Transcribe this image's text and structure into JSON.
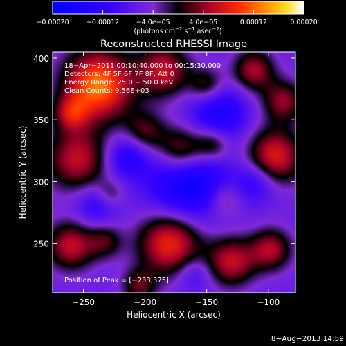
{
  "chart_data": {
    "type": "heatmap",
    "title": "Reconstructed RHESSI Image",
    "xlabel": "Heliocentric X (arcsec)",
    "ylabel": "Heliocentric Y (arcsec)",
    "xlim": [
      -275,
      -78
    ],
    "ylim": [
      210,
      405
    ],
    "x_ticks": [
      -250,
      -200,
      -150,
      -100
    ],
    "x_tick_labels": [
      "−250",
      "−200",
      "−150",
      "−100"
    ],
    "y_ticks": [
      250,
      300,
      350,
      400
    ],
    "y_tick_labels": [
      "250",
      "300",
      "350",
      "400"
    ],
    "colorbar": {
      "range": [
        -0.0002,
        0.0002
      ],
      "tick_values": [
        -0.0002,
        -0.00012,
        -4e-05,
        4e-05,
        0.00012,
        0.0002
      ],
      "tick_labels": [
        "−0.00020",
        "−0.00012",
        "−4.0e−05",
        "4.0e−05",
        "0.00012",
        "0.00020"
      ],
      "units_label": "(photons cm",
      "units_exp1": "−2",
      "units_mid": " s",
      "units_exp2": "−1",
      "units_end": " asec",
      "units_exp3": "−2",
      "units_close": ")"
    },
    "annotations": {
      "time_range": "18−Apr−2011 00:10:40.000 to 00:15:30.000",
      "detectors": "Detectors: 4F 5F 6F 7F 8F, Att 0",
      "energy_range": "Energy Range: 25.0 − 50.0 keV",
      "clean_counts": "Clean Counts: 9.56E+03",
      "peak_position": "Position of Peak = [−233,375]"
    },
    "peak": [
      -233,
      375
    ],
    "blobs_approx": [
      {
        "x": -238,
        "y": 378,
        "s": 20,
        "v": 0.00019
      },
      {
        "x": -260,
        "y": 355,
        "s": 10,
        "v": 9e-05
      },
      {
        "x": -185,
        "y": 390,
        "s": 15,
        "v": 0.00012
      },
      {
        "x": -150,
        "y": 378,
        "s": 10,
        "v": 8e-05
      },
      {
        "x": -112,
        "y": 390,
        "s": 12,
        "v": 0.00011
      },
      {
        "x": -88,
        "y": 365,
        "s": 12,
        "v": 0.0001
      },
      {
        "x": -255,
        "y": 318,
        "s": 18,
        "v": 0.00012
      },
      {
        "x": -200,
        "y": 340,
        "s": 12,
        "v": 8e-05
      },
      {
        "x": -170,
        "y": 325,
        "s": 14,
        "v": 0.00013
      },
      {
        "x": -145,
        "y": 330,
        "s": 10,
        "v": 9e-05
      },
      {
        "x": -95,
        "y": 320,
        "s": 16,
        "v": 0.00014
      },
      {
        "x": -228,
        "y": 290,
        "s": 8,
        "v": 5e-05
      },
      {
        "x": -135,
        "y": 285,
        "s": 10,
        "v": 6e-05
      },
      {
        "x": -260,
        "y": 248,
        "s": 14,
        "v": 0.00012
      },
      {
        "x": -232,
        "y": 252,
        "s": 10,
        "v": 7e-05
      },
      {
        "x": -180,
        "y": 250,
        "s": 18,
        "v": 0.00015
      },
      {
        "x": -130,
        "y": 235,
        "s": 14,
        "v": 0.00012
      },
      {
        "x": -98,
        "y": 245,
        "s": 12,
        "v": 0.00011
      },
      {
        "x": -205,
        "y": 215,
        "s": 10,
        "v": 8e-05
      },
      {
        "x": -165,
        "y": 300,
        "s": 22,
        "v": -0.00013
      },
      {
        "x": -140,
        "y": 355,
        "s": 16,
        "v": -9e-05
      },
      {
        "x": -215,
        "y": 320,
        "s": 12,
        "v": -8e-05
      },
      {
        "x": -110,
        "y": 300,
        "s": 12,
        "v": -7e-05
      },
      {
        "x": -240,
        "y": 280,
        "s": 12,
        "v": -6e-05
      },
      {
        "x": -160,
        "y": 225,
        "s": 10,
        "v": -5e-05
      }
    ]
  },
  "footer": {
    "date": "8−Aug−2013 14:59"
  }
}
